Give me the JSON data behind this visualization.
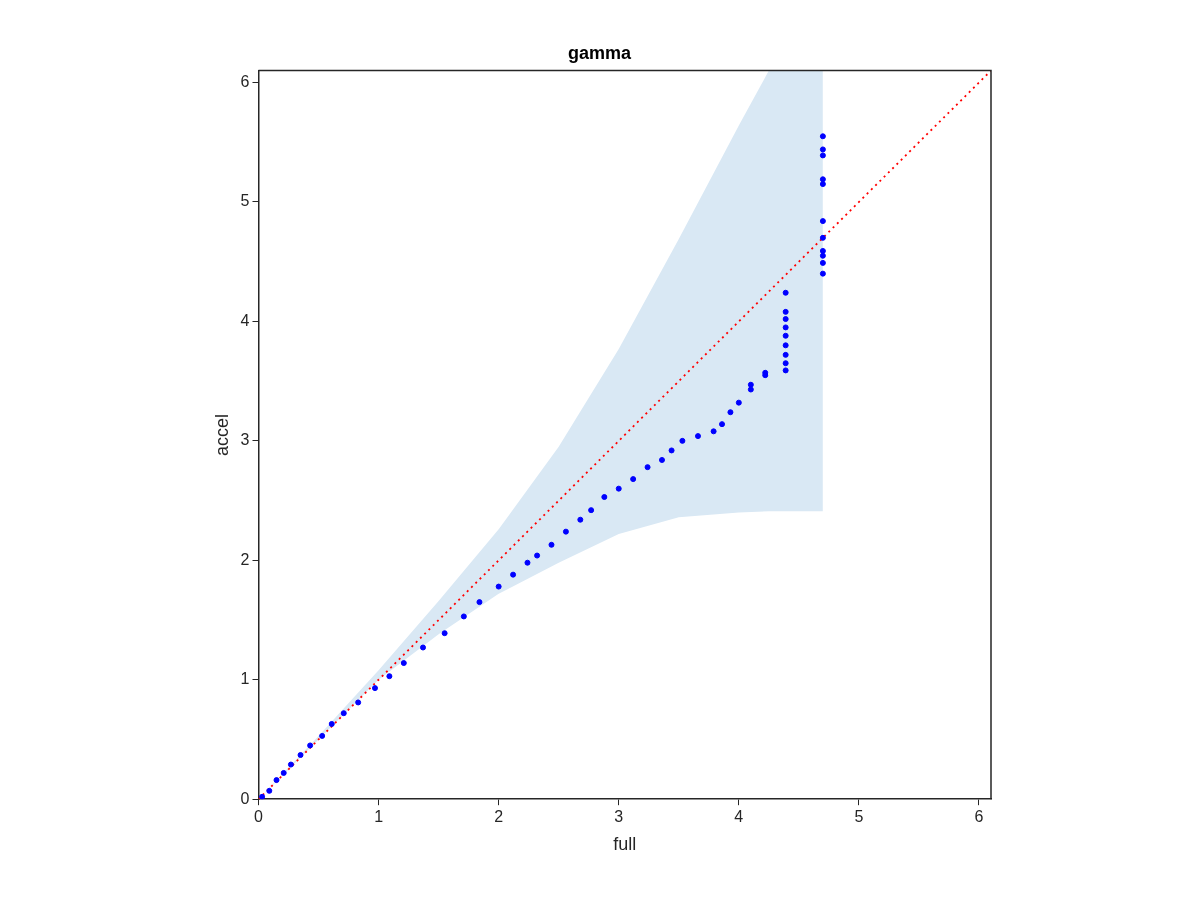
{
  "chart_data": {
    "type": "scatter",
    "title": "gamma",
    "xlabel": "full",
    "ylabel": "accel",
    "xlim": [
      0,
      6.1
    ],
    "ylim": [
      0,
      6.1
    ],
    "xticks": [
      0,
      1,
      2,
      3,
      4,
      5,
      6
    ],
    "yticks": [
      0,
      1,
      2,
      3,
      4,
      5,
      6
    ],
    "grid": false,
    "legend": false,
    "series": [
      {
        "type": "line",
        "color": "#ff0000",
        "line_style": "dotted",
        "marker": "none",
        "x": [
          0,
          0.5,
          1,
          1.5,
          2,
          2.5,
          3,
          3.5,
          4,
          4.25,
          4.7,
          6.1
        ],
        "values": [
          0,
          0.5,
          1,
          1.5,
          2,
          2.5,
          3,
          3.5,
          4,
          4.25,
          4.7,
          6.1
        ],
        "lower": [
          0,
          0.5,
          1.0,
          1.38,
          1.72,
          1.98,
          2.22,
          2.36,
          2.4,
          2.41,
          2.41,
          null
        ],
        "upper": [
          0,
          0.53,
          1.08,
          1.66,
          2.26,
          2.95,
          3.77,
          4.69,
          5.64,
          6.1,
          6.1,
          null
        ]
      },
      {
        "color": "#0000ff",
        "marker": "circle",
        "x": [
          0.03,
          0.09,
          0.15,
          0.21,
          0.27,
          0.35,
          0.43,
          0.53,
          0.61,
          0.71,
          0.83,
          0.97,
          1.09,
          1.21,
          1.37,
          1.55,
          1.71,
          1.84,
          2.0,
          2.12,
          2.24,
          2.32,
          2.44,
          2.56,
          2.68,
          2.77,
          2.88,
          3.0,
          3.12,
          3.24,
          3.36,
          3.44,
          3.53,
          3.66,
          3.79,
          3.86,
          3.93,
          4.0,
          4.1,
          4.1,
          4.22,
          4.22,
          4.39,
          4.39,
          4.39,
          4.39,
          4.39,
          4.39,
          4.39,
          4.39,
          4.39,
          4.7,
          4.7,
          4.7,
          4.7,
          4.7,
          4.7,
          4.7,
          4.7,
          4.7,
          4.7,
          4.7
        ],
        "values": [
          0.02,
          0.07,
          0.16,
          0.22,
          0.29,
          0.37,
          0.45,
          0.53,
          0.63,
          0.72,
          0.81,
          0.93,
          1.03,
          1.14,
          1.27,
          1.39,
          1.53,
          1.65,
          1.78,
          1.88,
          1.98,
          2.04,
          2.13,
          2.24,
          2.34,
          2.42,
          2.53,
          2.6,
          2.68,
          2.78,
          2.84,
          2.92,
          3.0,
          3.04,
          3.08,
          3.14,
          3.24,
          3.32,
          3.43,
          3.47,
          3.55,
          3.57,
          3.59,
          3.65,
          3.72,
          3.8,
          3.88,
          3.95,
          4.02,
          4.08,
          4.24,
          4.4,
          4.49,
          4.55,
          4.59,
          4.7,
          4.84,
          5.15,
          5.19,
          5.39,
          5.44,
          5.55
        ]
      }
    ]
  }
}
